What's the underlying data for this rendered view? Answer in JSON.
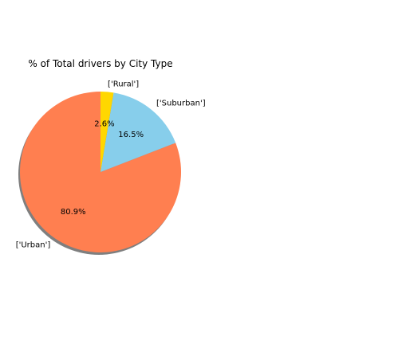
{
  "chart_data": {
    "type": "pie",
    "title": "% of Total drivers by City Type",
    "slices": [
      {
        "label": "['Urban']",
        "pct_label": "80.9%",
        "value": 80.9,
        "color": "#FF7F50"
      },
      {
        "label": "['Suburban']",
        "pct_label": "16.5%",
        "value": 16.5,
        "color": "#87CEEB"
      },
      {
        "label": "['Rural']",
        "pct_label": "2.6%",
        "value": 2.6,
        "color": "#FFD700"
      }
    ],
    "start_angle_deg": 90,
    "direction": "counterclockwise",
    "shadow": true
  }
}
